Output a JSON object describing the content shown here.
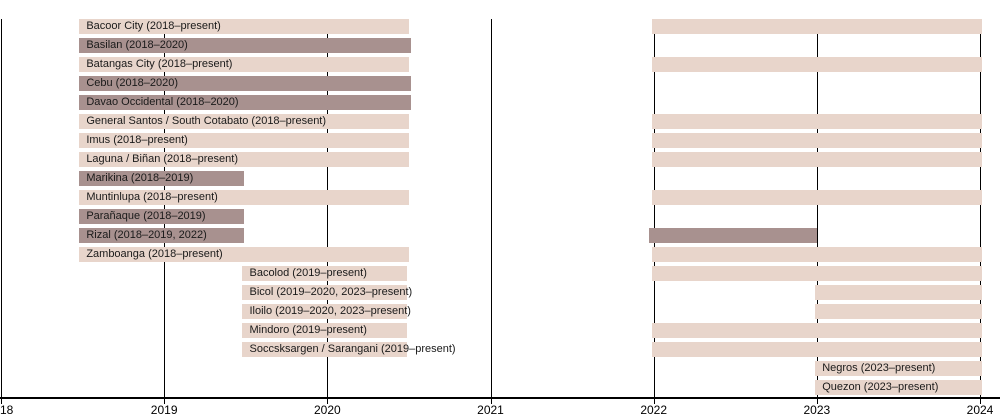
{
  "chart_data": {
    "type": "gantt",
    "description": "Timeline of teams/areas with active periods from 2018 to 2024",
    "x_axis": {
      "min": 2018,
      "max": 2024.1,
      "unit": "year",
      "ticks": [
        {
          "year": 2018,
          "label": "18",
          "align": "left"
        },
        {
          "year": 2019,
          "label": "2019",
          "align": "center"
        },
        {
          "year": 2020,
          "label": "2020",
          "align": "center"
        },
        {
          "year": 2021,
          "label": "2021",
          "align": "center"
        },
        {
          "year": 2022,
          "label": "2022",
          "align": "center"
        },
        {
          "year": 2023,
          "label": "2023",
          "align": "center"
        },
        {
          "year": 2024,
          "label": "2024",
          "align": "center"
        }
      ]
    },
    "grid": "vertical-year-lines-behind-bars",
    "legend": "none",
    "colors": {
      "active_bar": "#e8d5cb",
      "defunct_bar": "#a8918f",
      "axis": "#000000",
      "label_text": "#1a1a1a",
      "background": "#ffffff"
    },
    "rows": [
      {
        "label": "Bacoor City (2018–present)",
        "status": "active",
        "segments": [
          [
            2018.48,
            2020.5
          ],
          [
            2021.99,
            2024.01
          ]
        ]
      },
      {
        "label": "Basilan (2018–2020)",
        "status": "defunct",
        "segments": [
          [
            2018.48,
            2020.51
          ]
        ]
      },
      {
        "label": "Batangas City (2018–present)",
        "status": "active",
        "segments": [
          [
            2018.48,
            2020.5
          ],
          [
            2021.99,
            2024.01
          ]
        ]
      },
      {
        "label": "Cebu (2018–2020)",
        "status": "defunct",
        "segments": [
          [
            2018.48,
            2020.51
          ]
        ]
      },
      {
        "label": "Davao Occidental (2018–2020)",
        "status": "defunct",
        "segments": [
          [
            2018.48,
            2020.51
          ]
        ]
      },
      {
        "label": "General Santos / South Cotabato (2018–present)",
        "status": "active",
        "segments": [
          [
            2018.48,
            2020.5
          ],
          [
            2021.99,
            2024.01
          ]
        ]
      },
      {
        "label": "Imus (2018–present)",
        "status": "active",
        "segments": [
          [
            2018.48,
            2020.5
          ],
          [
            2021.99,
            2024.01
          ]
        ]
      },
      {
        "label": "Laguna / Biñan (2018–present)",
        "status": "active",
        "segments": [
          [
            2018.48,
            2020.5
          ],
          [
            2021.99,
            2024.01
          ]
        ]
      },
      {
        "label": "Marikina (2018–2019)",
        "status": "defunct",
        "segments": [
          [
            2018.48,
            2019.49
          ]
        ]
      },
      {
        "label": "Muntinlupa (2018–present)",
        "status": "active",
        "segments": [
          [
            2018.48,
            2020.5
          ],
          [
            2021.99,
            2024.01
          ]
        ]
      },
      {
        "label": "Parañaque (2018–2019)",
        "status": "defunct",
        "segments": [
          [
            2018.48,
            2019.49
          ]
        ]
      },
      {
        "label": "Rizal (2018–2019, 2022)",
        "status": "defunct",
        "segments": [
          [
            2018.48,
            2019.49
          ],
          [
            2021.97,
            2023.0
          ]
        ]
      },
      {
        "label": "Zamboanga (2018–present)",
        "status": "active",
        "segments": [
          [
            2018.48,
            2020.5
          ],
          [
            2021.99,
            2024.01
          ]
        ]
      },
      {
        "label": "Bacolod (2019–present)",
        "status": "active",
        "segments": [
          [
            2019.48,
            2020.49
          ],
          [
            2021.99,
            2024.01
          ]
        ]
      },
      {
        "label": "Bicol (2019–2020, 2023–present)",
        "status": "active",
        "segments": [
          [
            2019.48,
            2020.49
          ],
          [
            2022.99,
            2024.01
          ]
        ]
      },
      {
        "label": "Iloilo (2019–2020, 2023–present)",
        "status": "active",
        "segments": [
          [
            2019.48,
            2020.49
          ],
          [
            2022.99,
            2024.01
          ]
        ]
      },
      {
        "label": "Mindoro (2019–present)",
        "status": "active",
        "segments": [
          [
            2019.48,
            2020.49
          ],
          [
            2021.99,
            2024.01
          ]
        ]
      },
      {
        "label": "Soccsksargen / Sarangani (2019–present)",
        "status": "active",
        "segments": [
          [
            2019.48,
            2020.49
          ],
          [
            2021.99,
            2024.01
          ]
        ]
      },
      {
        "label": "Negros (2023–present)",
        "status": "active",
        "segments": [
          [
            2022.99,
            2024.01
          ]
        ]
      },
      {
        "label": "Quezon (2023–present)",
        "status": "active",
        "segments": [
          [
            2022.99,
            2024.01
          ]
        ]
      }
    ]
  }
}
